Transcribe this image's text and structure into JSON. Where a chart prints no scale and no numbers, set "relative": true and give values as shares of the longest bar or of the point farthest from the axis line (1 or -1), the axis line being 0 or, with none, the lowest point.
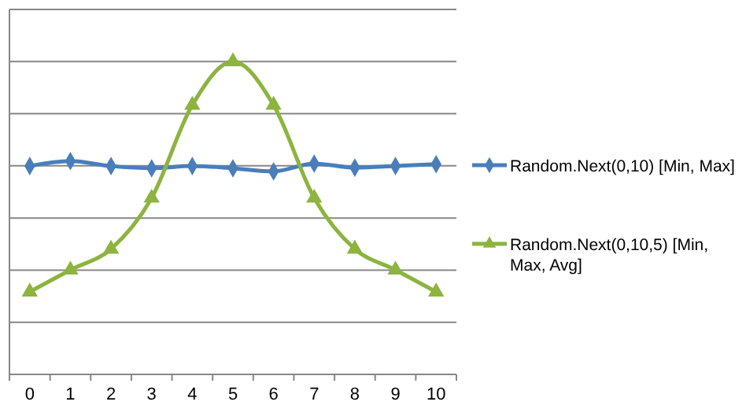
{
  "chart_data": {
    "type": "line",
    "relative": true,
    "grid": "y",
    "legend": "right",
    "categories": [
      "0",
      "1",
      "2",
      "3",
      "4",
      "5",
      "6",
      "7",
      "8",
      "9",
      "10"
    ],
    "series": [
      {
        "name": "Random.Next(0,10) [Min, Max]",
        "color": "#4a7ebb",
        "marker": "diamond",
        "values": [
          0.666,
          0.682,
          0.666,
          0.659,
          0.666,
          0.659,
          0.649,
          0.674,
          0.661,
          0.666,
          0.672
        ]
      },
      {
        "name": "Random.Next(0,10,5) [Min, Max, Avg]",
        "color": "#8cb43f",
        "marker": "triangle",
        "values": [
          0.264,
          0.334,
          0.401,
          0.564,
          0.861,
          1,
          0.861,
          0.564,
          0.401,
          0.334,
          0.264
        ]
      }
    ]
  }
}
